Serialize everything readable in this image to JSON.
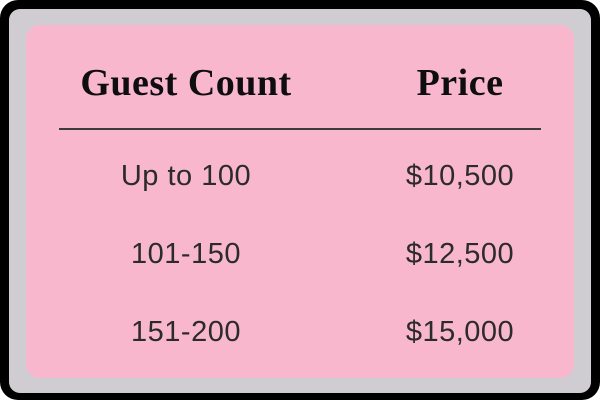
{
  "card": {
    "colors": {
      "card_background": "#F9B7CD",
      "outer_frame": "#000000",
      "shadow_ring": "#D0CDD2",
      "header_text": "#0E0E10",
      "body_text": "#2B2B2B",
      "divider": "#3D3A3D",
      "page_background": "#FFFFFF"
    },
    "columns": [
      {
        "key": "guest_count",
        "label": "Guest Count"
      },
      {
        "key": "price",
        "label": "Price"
      }
    ],
    "rows": [
      {
        "guest_count": "Up to 100",
        "price": "$10,500"
      },
      {
        "guest_count": "101-150",
        "price": "$12,500"
      },
      {
        "guest_count": "151-200",
        "price": "$15,000"
      }
    ]
  },
  "chart_data": {
    "type": "table",
    "title": "",
    "columns": [
      "Guest Count",
      "Price"
    ],
    "rows": [
      [
        "Up to 100",
        "$10,500"
      ],
      [
        "101-150",
        "$12,500"
      ],
      [
        "151-200",
        "$15,000"
      ]
    ],
    "prices_numeric": [
      10500,
      12500,
      15000
    ],
    "layout": "two-column centered pricing table on pink rounded card with black outer frame"
  }
}
